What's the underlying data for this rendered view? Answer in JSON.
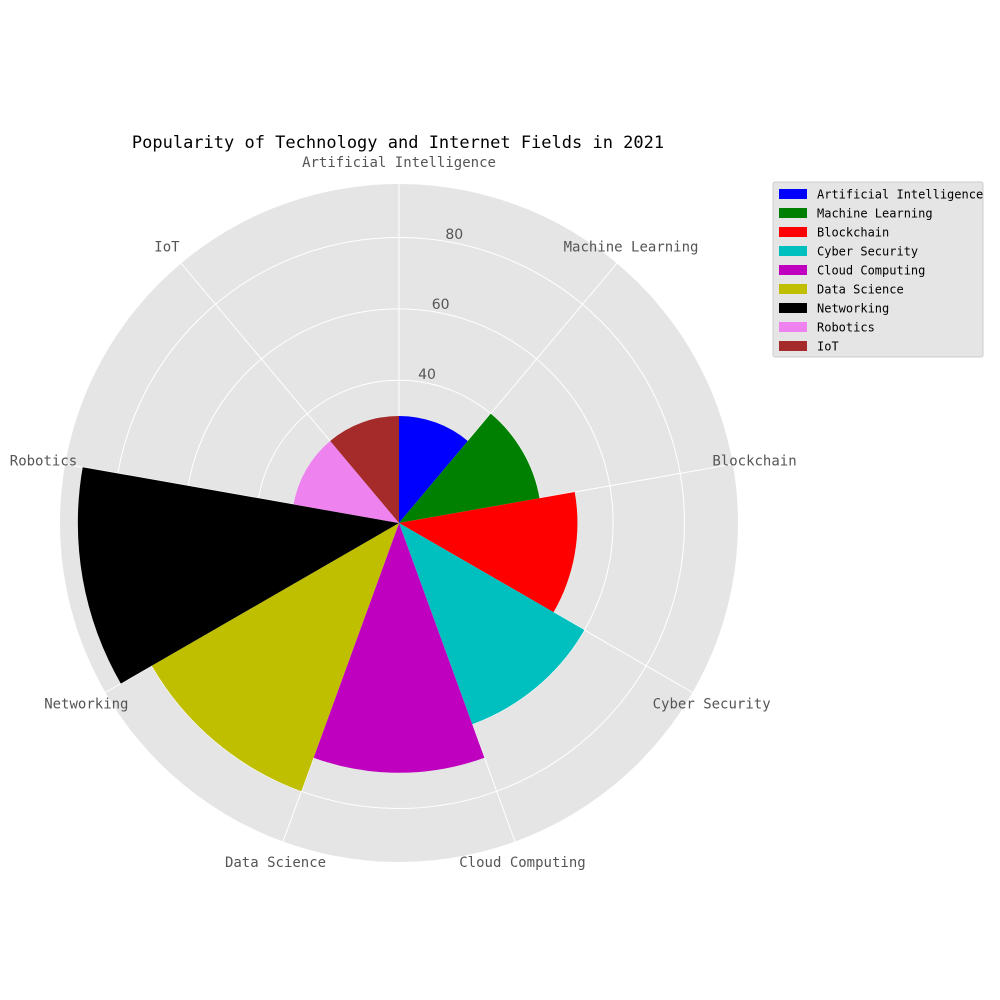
{
  "chart_data": {
    "type": "polar-bar",
    "title": "Popularity of Technology and Internet Fields in 2021",
    "categories": [
      "Artificial Intelligence",
      "Machine Learning",
      "Blockchain",
      "Cyber Security",
      "Cloud Computing",
      "Data Science",
      "Networking",
      "Robotics",
      "IoT"
    ],
    "values": [
      30,
      40,
      50,
      60,
      70,
      80,
      90,
      30,
      30
    ],
    "colors": [
      "#0000ff",
      "#008000",
      "#ff0000",
      "#00bfbf",
      "#bf00bf",
      "#bfbf00",
      "#000000",
      "#ee82ee",
      "#a52a2a"
    ],
    "rlim": [
      0,
      95
    ],
    "rticks": [
      20,
      40,
      60,
      80
    ],
    "rtick_labels": [
      "",
      "40",
      "60",
      "80"
    ],
    "theta_direction": "clockwise",
    "theta_zero": "top",
    "grid": true,
    "legend": {
      "location": "upper-right-outside",
      "entries": [
        "Artificial Intelligence",
        "Machine Learning",
        "Blockchain",
        "Cyber Security",
        "Cloud Computing",
        "Data Science",
        "Networking",
        "Robotics",
        "IoT"
      ]
    }
  }
}
